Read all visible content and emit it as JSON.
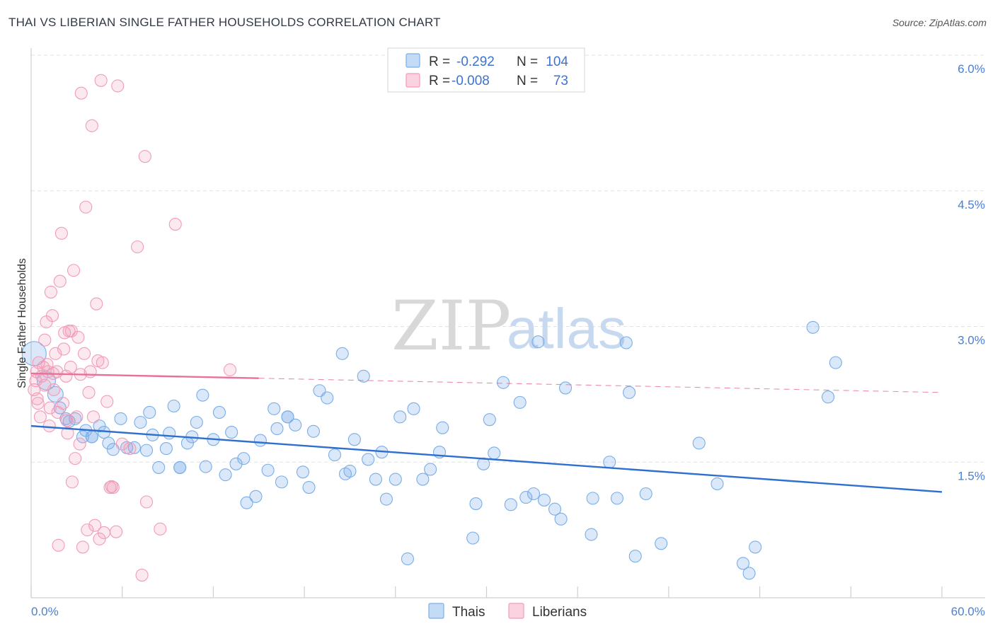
{
  "title": "THAI VS LIBERIAN SINGLE FATHER HOUSEHOLDS CORRELATION CHART",
  "source": "Source: ZipAtlas.com",
  "watermark": {
    "zip": "ZIP",
    "atlas": "atlas"
  },
  "legend": {
    "rows": [
      {
        "r_label": "R =",
        "r_value": "-0.292",
        "n_label": "N =",
        "n_value": "104",
        "color": "#7aaee8"
      },
      {
        "r_label": "R =",
        "r_value": "-0.008",
        "n_label": "N =",
        "n_value": "73",
        "color": "#f29bb8"
      }
    ]
  },
  "bottom_legend": [
    "Thais",
    "Liberians"
  ],
  "chart_data": {
    "type": "scatter",
    "xlabel": "",
    "ylabel": "Single Father Households",
    "xlim": [
      0,
      60
    ],
    "ylim": [
      0,
      6.0
    ],
    "x_tick_labels": [
      "0.0%",
      "60.0%"
    ],
    "y_ticks": [
      1.5,
      3.0,
      4.5,
      6.0
    ],
    "y_tick_labels": [
      "1.5%",
      "3.0%",
      "4.5%",
      "6.0%"
    ],
    "grid": true,
    "series": [
      {
        "name": "Thais",
        "color": "#7aaee8",
        "trend": {
          "x": [
            0,
            60
          ],
          "y": [
            1.9,
            1.17
          ],
          "dashed_from": null
        },
        "points": [
          [
            0.2,
            2.7
          ],
          [
            1.0,
            2.4
          ],
          [
            1.6,
            2.25
          ],
          [
            1.9,
            2.1
          ],
          [
            2.3,
            1.98
          ],
          [
            2.5,
            1.95
          ],
          [
            2.9,
            1.98
          ],
          [
            3.4,
            1.78
          ],
          [
            3.6,
            1.85
          ],
          [
            4.0,
            1.78
          ],
          [
            4.5,
            1.9
          ],
          [
            4.8,
            1.83
          ],
          [
            5.1,
            1.71
          ],
          [
            5.4,
            1.64
          ],
          [
            5.9,
            1.98
          ],
          [
            6.3,
            1.66
          ],
          [
            6.8,
            1.66
          ],
          [
            7.2,
            1.94
          ],
          [
            7.6,
            1.63
          ],
          [
            7.8,
            2.05
          ],
          [
            8.0,
            1.8
          ],
          [
            8.4,
            1.44
          ],
          [
            8.9,
            1.65
          ],
          [
            9.1,
            1.82
          ],
          [
            9.4,
            2.12
          ],
          [
            9.8,
            1.44
          ],
          [
            10.3,
            1.71
          ],
          [
            10.6,
            1.78
          ],
          [
            10.9,
            1.94
          ],
          [
            11.3,
            2.24
          ],
          [
            11.5,
            1.45
          ],
          [
            12.0,
            1.75
          ],
          [
            12.4,
            2.05
          ],
          [
            12.8,
            1.36
          ],
          [
            13.2,
            1.83
          ],
          [
            13.5,
            1.48
          ],
          [
            14.0,
            1.54
          ],
          [
            14.2,
            1.05
          ],
          [
            14.8,
            1.12
          ],
          [
            15.1,
            1.74
          ],
          [
            15.6,
            1.41
          ],
          [
            16.0,
            2.09
          ],
          [
            16.2,
            1.87
          ],
          [
            16.5,
            1.28
          ],
          [
            16.9,
            2.0
          ],
          [
            17.4,
            1.91
          ],
          [
            17.9,
            1.39
          ],
          [
            18.3,
            1.22
          ],
          [
            18.6,
            1.84
          ],
          [
            19.0,
            2.29
          ],
          [
            19.5,
            2.21
          ],
          [
            20.0,
            1.58
          ],
          [
            20.7,
            1.37
          ],
          [
            21.0,
            1.4
          ],
          [
            21.3,
            1.75
          ],
          [
            21.9,
            2.45
          ],
          [
            22.2,
            1.53
          ],
          [
            22.7,
            1.31
          ],
          [
            23.1,
            1.61
          ],
          [
            23.4,
            1.09
          ],
          [
            24.0,
            1.31
          ],
          [
            24.3,
            2.0
          ],
          [
            24.8,
            0.43
          ],
          [
            25.2,
            2.09
          ],
          [
            25.8,
            1.31
          ],
          [
            26.3,
            1.42
          ],
          [
            26.9,
            1.61
          ],
          [
            27.1,
            1.88
          ],
          [
            29.1,
            0.66
          ],
          [
            29.3,
            1.04
          ],
          [
            29.8,
            1.48
          ],
          [
            30.2,
            1.97
          ],
          [
            30.5,
            1.6
          ],
          [
            31.1,
            2.38
          ],
          [
            31.6,
            1.03
          ],
          [
            32.2,
            2.16
          ],
          [
            32.6,
            1.11
          ],
          [
            33.1,
            1.15
          ],
          [
            33.4,
            2.83
          ],
          [
            33.8,
            1.08
          ],
          [
            34.5,
            0.98
          ],
          [
            34.9,
            0.87
          ],
          [
            35.2,
            2.32
          ],
          [
            36.9,
            0.7
          ],
          [
            37.0,
            1.1
          ],
          [
            38.1,
            1.5
          ],
          [
            38.6,
            1.1
          ],
          [
            39.2,
            2.82
          ],
          [
            39.4,
            2.27
          ],
          [
            39.8,
            0.46
          ],
          [
            40.5,
            1.15
          ],
          [
            41.5,
            0.6
          ],
          [
            44.0,
            1.71
          ],
          [
            45.2,
            1.26
          ],
          [
            46.9,
            0.38
          ],
          [
            47.3,
            0.27
          ],
          [
            47.7,
            0.56
          ],
          [
            51.5,
            2.99
          ],
          [
            52.5,
            2.22
          ],
          [
            53.0,
            2.6
          ],
          [
            16.9,
            2.0
          ],
          [
            20.5,
            2.7
          ],
          [
            4.0,
            1.78
          ],
          [
            9.8,
            1.44
          ]
        ]
      },
      {
        "name": "Liberians",
        "color": "#f29bb8",
        "trend": {
          "x": [
            0,
            60
          ],
          "y": [
            2.48,
            2.27
          ],
          "dashed_from": 15
        },
        "points": [
          [
            0.2,
            2.3
          ],
          [
            0.3,
            2.4
          ],
          [
            0.4,
            2.2
          ],
          [
            0.5,
            2.6
          ],
          [
            0.6,
            2.0
          ],
          [
            0.7,
            2.45
          ],
          [
            0.8,
            2.55
          ],
          [
            0.9,
            2.85
          ],
          [
            1.0,
            3.05
          ],
          [
            1.1,
            2.5
          ],
          [
            1.2,
            1.9
          ],
          [
            1.3,
            3.38
          ],
          [
            1.4,
            3.12
          ],
          [
            1.5,
            2.3
          ],
          [
            1.6,
            2.7
          ],
          [
            1.7,
            2.5
          ],
          [
            1.8,
            0.58
          ],
          [
            1.9,
            3.5
          ],
          [
            2.0,
            4.03
          ],
          [
            2.1,
            2.15
          ],
          [
            2.2,
            2.93
          ],
          [
            2.3,
            2.45
          ],
          [
            2.4,
            1.82
          ],
          [
            2.5,
            2.95
          ],
          [
            2.6,
            2.55
          ],
          [
            2.7,
            1.28
          ],
          [
            2.8,
            3.62
          ],
          [
            2.9,
            1.54
          ],
          [
            3.0,
            2.0
          ],
          [
            3.1,
            2.88
          ],
          [
            3.2,
            1.7
          ],
          [
            3.3,
            5.58
          ],
          [
            3.4,
            0.56
          ],
          [
            3.5,
            2.7
          ],
          [
            3.6,
            4.32
          ],
          [
            3.7,
            0.75
          ],
          [
            3.8,
            2.27
          ],
          [
            3.9,
            2.5
          ],
          [
            4.0,
            5.22
          ],
          [
            4.1,
            2.0
          ],
          [
            4.2,
            0.8
          ],
          [
            4.3,
            3.25
          ],
          [
            4.4,
            2.62
          ],
          [
            4.5,
            0.65
          ],
          [
            4.6,
            5.72
          ],
          [
            4.7,
            2.6
          ],
          [
            4.8,
            0.72
          ],
          [
            5.0,
            2.17
          ],
          [
            5.2,
            1.22
          ],
          [
            5.4,
            1.22
          ],
          [
            5.6,
            0.73
          ],
          [
            5.7,
            5.66
          ],
          [
            6.0,
            1.7
          ],
          [
            6.5,
            1.65
          ],
          [
            7.0,
            3.88
          ],
          [
            7.5,
            4.88
          ],
          [
            7.6,
            1.06
          ],
          [
            7.3,
            0.25
          ],
          [
            8.5,
            0.76
          ],
          [
            9.5,
            4.13
          ],
          [
            13.1,
            2.52
          ],
          [
            0.35,
            2.5
          ],
          [
            0.45,
            2.15
          ],
          [
            0.9,
            2.35
          ],
          [
            1.05,
            2.58
          ],
          [
            1.25,
            2.1
          ],
          [
            1.45,
            2.48
          ],
          [
            1.75,
            2.05
          ],
          [
            2.15,
            2.75
          ],
          [
            2.35,
            1.96
          ],
          [
            2.65,
            2.95
          ],
          [
            3.25,
            2.47
          ],
          [
            5.3,
            1.23
          ]
        ]
      }
    ]
  }
}
